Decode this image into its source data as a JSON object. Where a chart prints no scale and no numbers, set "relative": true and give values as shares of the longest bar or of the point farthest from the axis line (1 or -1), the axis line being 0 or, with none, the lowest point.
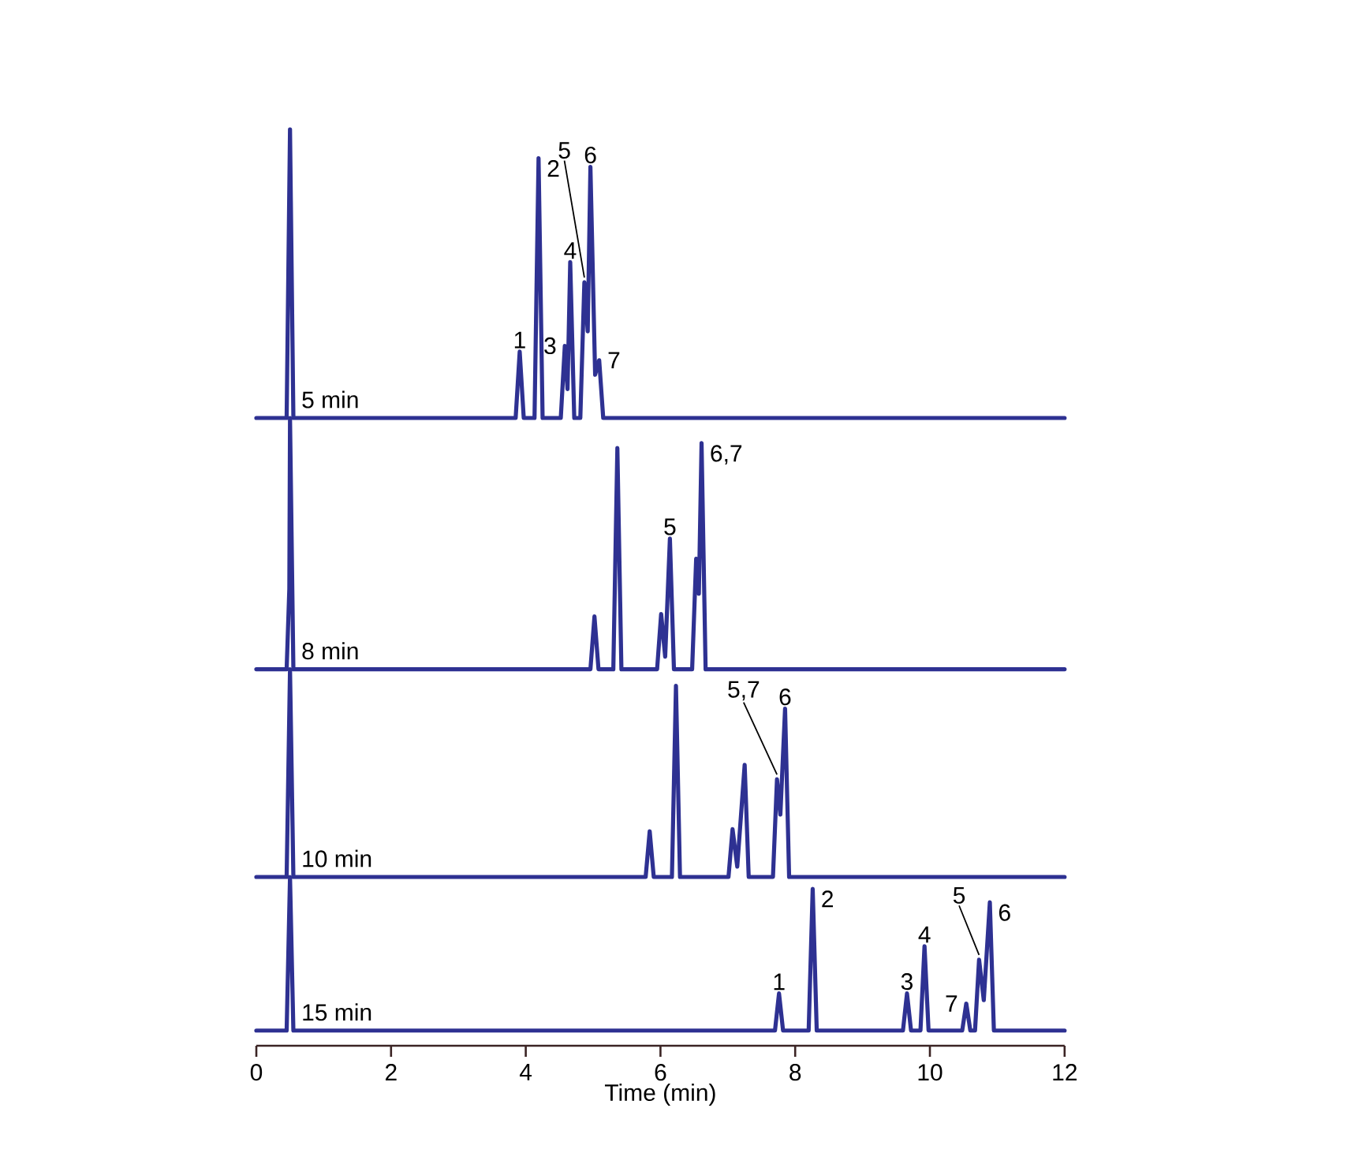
{
  "chart_data": [
    {
      "type": "line",
      "relative": true,
      "xlim": [
        0,
        12
      ],
      "tick_labels": false,
      "series": [
        {
          "name": "5 min",
          "color": "#2e3192",
          "x": [
            0,
            0.45,
            0.5,
            0.55,
            3.85,
            3.91,
            3.97,
            4.13,
            4.19,
            4.25,
            4.52,
            4.58,
            4.62,
            4.66,
            4.72,
            4.81,
            4.87,
            4.92,
            4.96,
            5.03,
            5.09,
            5.15,
            12
          ],
          "values": [
            0,
            0,
            1,
            0,
            0,
            0.23,
            0,
            0,
            0.9,
            0,
            0,
            0.25,
            0.1,
            0.54,
            0,
            0,
            0.47,
            0.3,
            0.87,
            0.15,
            0.2,
            0,
            0
          ]
        }
      ],
      "annotations": [
        {
          "text": "1",
          "x": 3.91,
          "y": 0.23
        },
        {
          "text": "2",
          "x": 4.19,
          "y": 0.9
        },
        {
          "text": "3",
          "x": 4.58,
          "y": 0.25
        },
        {
          "text": "4",
          "x": 4.66,
          "y": 0.54
        },
        {
          "text": "5",
          "x": 4.87,
          "y": 0.47
        },
        {
          "text": "6",
          "x": 4.96,
          "y": 0.87
        },
        {
          "text": "7",
          "x": 5.09,
          "y": 0.2
        }
      ]
    },
    {
      "type": "line",
      "relative": true,
      "xlim": [
        0,
        12
      ],
      "tick_labels": false,
      "series": [
        {
          "name": "8 min",
          "color": "#2e3192",
          "x": [
            0,
            0.45,
            0.49,
            0.5,
            0.55,
            4.96,
            5.02,
            5.08,
            5.3,
            5.36,
            5.42,
            5.95,
            6.01,
            6.07,
            6.14,
            6.2,
            6.47,
            6.53,
            6.57,
            6.61,
            6.67,
            12
          ],
          "values": [
            0,
            0,
            0.32,
            1,
            0,
            0,
            0.21,
            0,
            0,
            0.88,
            0,
            0,
            0.22,
            0.05,
            0.52,
            0,
            0,
            0.44,
            0.3,
            0.9,
            0,
            0
          ]
        }
      ],
      "annotations": [
        {
          "text": "5",
          "x": 6.14,
          "y": 0.52
        },
        {
          "text": "6,7",
          "x": 6.61,
          "y": 0.9
        }
      ]
    },
    {
      "type": "line",
      "relative": true,
      "xlim": [
        0,
        12
      ],
      "tick_labels": false,
      "series": [
        {
          "name": "10 min",
          "color": "#2e3192",
          "x": [
            0,
            0.45,
            0.5,
            0.55,
            5.78,
            5.84,
            5.9,
            6.17,
            6.23,
            6.29,
            7.01,
            7.07,
            7.14,
            7.25,
            7.31,
            7.67,
            7.73,
            7.78,
            7.85,
            7.91,
            12
          ],
          "values": [
            0,
            0,
            1,
            0,
            0,
            0.22,
            0,
            0,
            0.92,
            0,
            0,
            0.23,
            0.05,
            0.54,
            0,
            0,
            0.47,
            0.3,
            0.81,
            0,
            0
          ]
        }
      ],
      "annotations": [
        {
          "text": "5,7",
          "x": 7.73,
          "y": 0.47
        },
        {
          "text": "6",
          "x": 7.85,
          "y": 0.81
        }
      ]
    },
    {
      "type": "line",
      "relative": true,
      "xlim": [
        0,
        12
      ],
      "xticks": [
        0,
        2,
        4,
        6,
        8,
        10,
        12
      ],
      "xlabel": "Time (min)",
      "series": [
        {
          "name": "15 min",
          "color": "#2e3192",
          "x": [
            0,
            0.45,
            0.5,
            0.55,
            7.7,
            7.76,
            7.82,
            8.2,
            8.26,
            8.32,
            9.6,
            9.66,
            9.72,
            9.86,
            9.92,
            9.98,
            10.48,
            10.54,
            10.6,
            10.67,
            10.73,
            10.8,
            10.89,
            10.95,
            12
          ],
          "values": [
            0.09,
            0.09,
            1,
            0.09,
            0.09,
            0.31,
            0.09,
            0.09,
            0.93,
            0.09,
            0.09,
            0.31,
            0.09,
            0.09,
            0.59,
            0.09,
            0.09,
            0.25,
            0.09,
            0.09,
            0.51,
            0.27,
            0.85,
            0.09,
            0.09
          ]
        }
      ],
      "annotations": [
        {
          "text": "1",
          "x": 7.76,
          "y": 0.31
        },
        {
          "text": "2",
          "x": 8.26,
          "y": 0.93
        },
        {
          "text": "3",
          "x": 9.66,
          "y": 0.31
        },
        {
          "text": "4",
          "x": 9.92,
          "y": 0.59
        },
        {
          "text": "7",
          "x": 10.54,
          "y": 0.25
        },
        {
          "text": "5",
          "x": 10.73,
          "y": 0.51
        },
        {
          "text": "6",
          "x": 10.89,
          "y": 0.85
        }
      ]
    }
  ]
}
